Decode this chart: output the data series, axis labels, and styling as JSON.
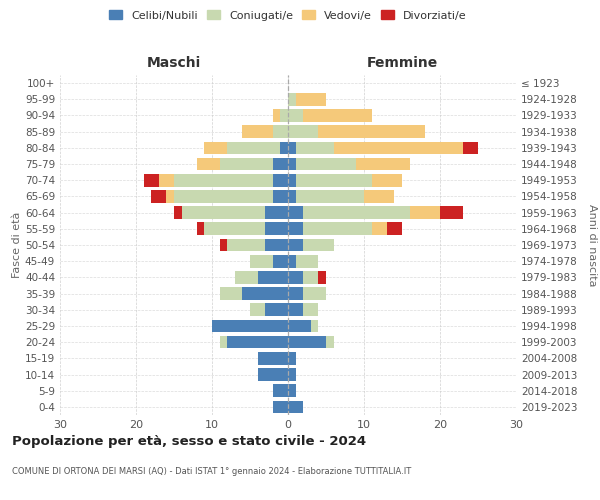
{
  "age_groups": [
    "0-4",
    "5-9",
    "10-14",
    "15-19",
    "20-24",
    "25-29",
    "30-34",
    "35-39",
    "40-44",
    "45-49",
    "50-54",
    "55-59",
    "60-64",
    "65-69",
    "70-74",
    "75-79",
    "80-84",
    "85-89",
    "90-94",
    "95-99",
    "100+"
  ],
  "birth_years": [
    "2019-2023",
    "2014-2018",
    "2009-2013",
    "2004-2008",
    "1999-2003",
    "1994-1998",
    "1989-1993",
    "1984-1988",
    "1979-1983",
    "1974-1978",
    "1969-1973",
    "1964-1968",
    "1959-1963",
    "1954-1958",
    "1949-1953",
    "1944-1948",
    "1939-1943",
    "1934-1938",
    "1929-1933",
    "1924-1928",
    "≤ 1923"
  ],
  "maschi": {
    "celibi": [
      2,
      2,
      4,
      4,
      8,
      10,
      3,
      6,
      4,
      2,
      3,
      3,
      3,
      2,
      2,
      2,
      1,
      0,
      0,
      0,
      0
    ],
    "coniugati": [
      0,
      0,
      0,
      0,
      1,
      0,
      2,
      3,
      3,
      3,
      5,
      8,
      11,
      13,
      13,
      7,
      7,
      2,
      1,
      0,
      0
    ],
    "vedovi": [
      0,
      0,
      0,
      0,
      0,
      0,
      0,
      0,
      0,
      0,
      0,
      0,
      0,
      1,
      2,
      3,
      3,
      4,
      1,
      0,
      0
    ],
    "divorziati": [
      0,
      0,
      0,
      0,
      0,
      0,
      0,
      0,
      0,
      0,
      1,
      1,
      1,
      2,
      2,
      0,
      0,
      0,
      0,
      0,
      0
    ]
  },
  "femmine": {
    "nubili": [
      2,
      1,
      1,
      1,
      5,
      3,
      2,
      2,
      2,
      1,
      2,
      2,
      2,
      1,
      1,
      1,
      1,
      0,
      0,
      0,
      0
    ],
    "coniugate": [
      0,
      0,
      0,
      0,
      1,
      1,
      2,
      3,
      2,
      3,
      4,
      9,
      14,
      9,
      10,
      8,
      5,
      4,
      2,
      1,
      0
    ],
    "vedove": [
      0,
      0,
      0,
      0,
      0,
      0,
      0,
      0,
      0,
      0,
      0,
      2,
      4,
      4,
      4,
      7,
      17,
      14,
      9,
      4,
      0
    ],
    "divorziate": [
      0,
      0,
      0,
      0,
      0,
      0,
      0,
      0,
      1,
      0,
      0,
      2,
      3,
      0,
      0,
      0,
      2,
      0,
      0,
      0,
      0
    ]
  },
  "colors": {
    "celibi_nubili": "#4a7fb5",
    "coniugati_e": "#c8d9b0",
    "vedovi_e": "#f5c97a",
    "divorziati_e": "#cc2222"
  },
  "xlim": 30,
  "title_main": "Popolazione per età, sesso e stato civile - 2024",
  "title_sub": "COMUNE DI ORTONA DEI MARSI (AQ) - Dati ISTAT 1° gennaio 2024 - Elaborazione TUTTITALIA.IT",
  "ylabel_left": "Fasce di età",
  "ylabel_right": "Anni di nascita",
  "xlabel_left": "Maschi",
  "xlabel_right": "Femmine",
  "legend_labels": [
    "Celibi/Nubili",
    "Coniugati/e",
    "Vedovi/e",
    "Divorziati/e"
  ],
  "background_color": "#ffffff",
  "grid_color": "#cccccc"
}
